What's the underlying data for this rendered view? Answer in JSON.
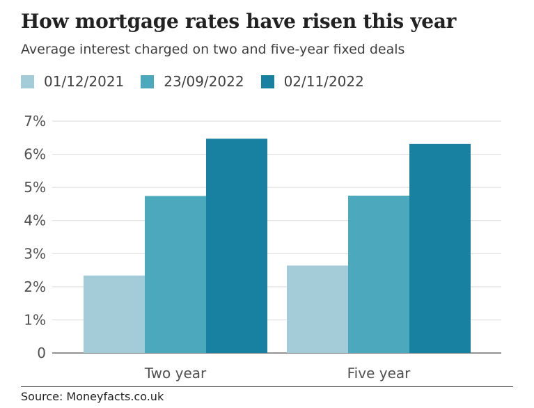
{
  "header": {
    "title": "How mortgage rates have risen this year",
    "subtitle": "Average interest charged on two and five-year fixed deals"
  },
  "footer": {
    "source": "Source: Moneyfacts.co.uk"
  },
  "chart_data": {
    "type": "bar",
    "categories": [
      "Two year",
      "Five year"
    ],
    "series": [
      {
        "name": "01/12/2021",
        "color": "#a4ccd8",
        "values": [
          2.34,
          2.64
        ]
      },
      {
        "name": "23/09/2022",
        "color": "#4ba8bd",
        "values": [
          4.74,
          4.75
        ]
      },
      {
        "name": "02/11/2022",
        "color": "#1880a0",
        "values": [
          6.47,
          6.31
        ]
      }
    ],
    "yticks": [
      "0",
      "1%",
      "2%",
      "3%",
      "4%",
      "5%",
      "6%",
      "7%"
    ],
    "ylim": [
      0,
      7
    ],
    "grid": true,
    "legend": "top-left"
  }
}
